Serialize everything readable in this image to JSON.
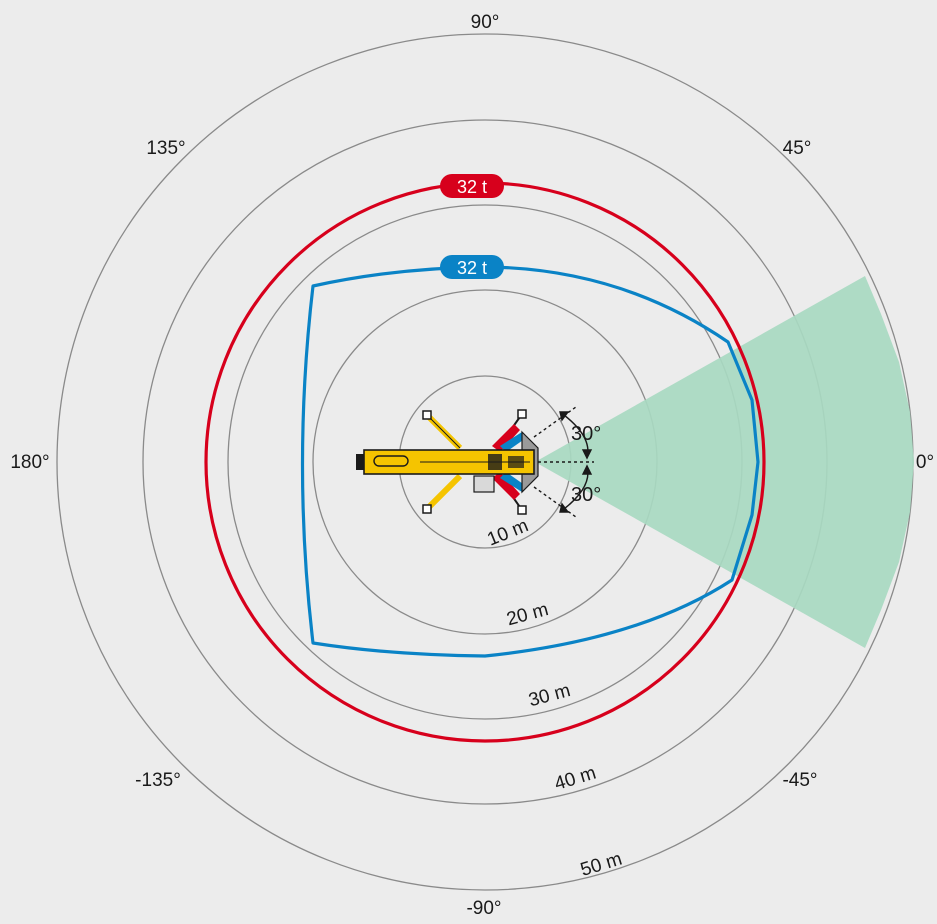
{
  "diagram": {
    "angles": [
      {
        "key": "a90",
        "label": "90°"
      },
      {
        "key": "a45",
        "label": "45°"
      },
      {
        "key": "a0",
        "label": "0°"
      },
      {
        "key": "am45",
        "label": "-45°"
      },
      {
        "key": "am90",
        "label": "-90°"
      },
      {
        "key": "am135",
        "label": "-135°"
      },
      {
        "key": "a180",
        "label": "180°"
      },
      {
        "key": "a135",
        "label": "135°"
      }
    ],
    "distances": [
      {
        "key": "d10",
        "label": "10 m"
      },
      {
        "key": "d20",
        "label": "20 m"
      },
      {
        "key": "d30",
        "label": "30 m"
      },
      {
        "key": "d40",
        "label": "40 m"
      },
      {
        "key": "d50",
        "label": "50 m"
      }
    ],
    "load_curves": [
      {
        "key": "red",
        "label": "32 t",
        "color": "#d7001c"
      },
      {
        "key": "blue",
        "label": "32 t",
        "color": "#0a83c6"
      }
    ],
    "working_sector": {
      "upper_label": "30°",
      "lower_label": "30°",
      "color": "#a8d9c1"
    },
    "colors": {
      "background": "#ececec",
      "band_light": "#f4f4f4",
      "band_white": "#ffffff",
      "ring": "#8a8a8a",
      "crane": "#f5c400"
    }
  }
}
